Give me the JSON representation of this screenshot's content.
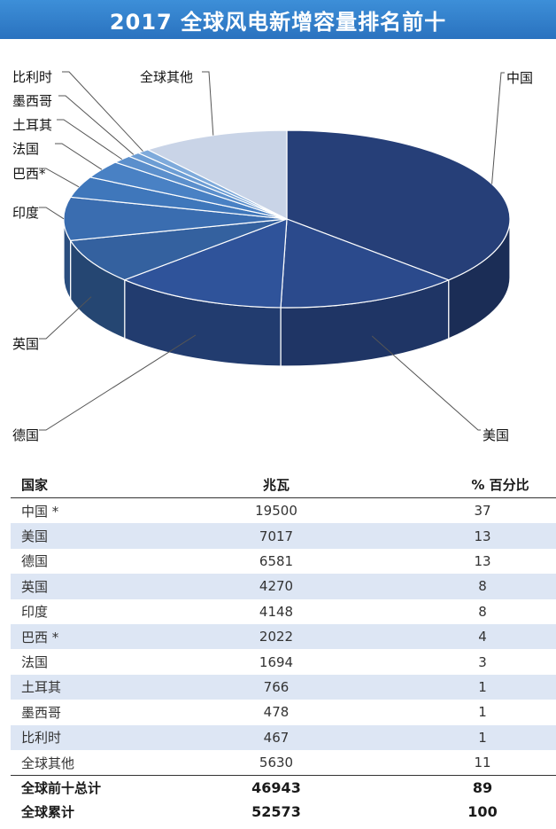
{
  "title": "2017 全球风电新增容量排名前十",
  "chart_data": {
    "type": "pie",
    "title": "2017 全球风电新增容量排名前十",
    "unit": "兆瓦",
    "categories": [
      "中国",
      "美国",
      "德国",
      "英国",
      "印度",
      "巴西*",
      "法国",
      "土耳其",
      "墨西哥",
      "比利时",
      "全球其他"
    ],
    "values": [
      19500,
      7017,
      6581,
      4270,
      4148,
      2022,
      1694,
      766,
      478,
      467,
      5630
    ],
    "colors": [
      "#263f78",
      "#2b4a8c",
      "#2f539a",
      "#34619f",
      "#3a6db0",
      "#3f77bb",
      "#4981c4",
      "#5b8fcc",
      "#6c9dd4",
      "#7eaadb",
      "#c9d4e7"
    ]
  },
  "table": {
    "headers": [
      "国家",
      "兆瓦",
      "% 百分比"
    ],
    "rows": [
      {
        "country": "中国 *",
        "mw": "19500",
        "pct": "37"
      },
      {
        "country": "美国",
        "mw": "7017",
        "pct": "13"
      },
      {
        "country": "德国",
        "mw": "6581",
        "pct": "13"
      },
      {
        "country": "英国",
        "mw": "4270",
        "pct": "8"
      },
      {
        "country": "印度",
        "mw": "4148",
        "pct": "8"
      },
      {
        "country": "巴西 *",
        "mw": "2022",
        "pct": "4"
      },
      {
        "country": "法国",
        "mw": "1694",
        "pct": "3"
      },
      {
        "country": "土耳其",
        "mw": "766",
        "pct": "1"
      },
      {
        "country": "墨西哥",
        "mw": "478",
        "pct": "1"
      },
      {
        "country": "比利时",
        "mw": "467",
        "pct": "1"
      },
      {
        "country": "全球其他",
        "mw": "5630",
        "pct": "11"
      }
    ],
    "totals": [
      {
        "label": "全球前十总计",
        "mw": "46943",
        "pct": "89"
      },
      {
        "label": "全球累计",
        "mw": "52573",
        "pct": "100"
      }
    ]
  }
}
